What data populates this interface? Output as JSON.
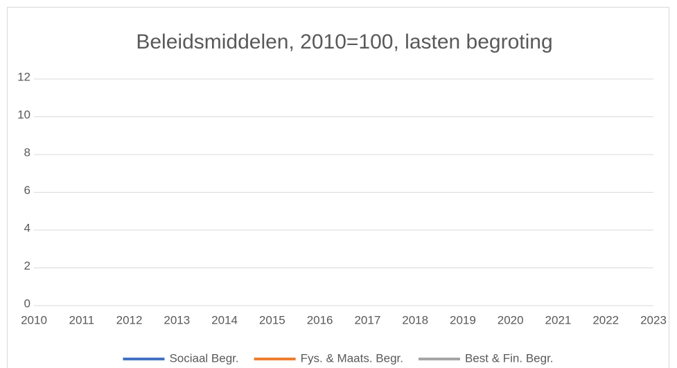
{
  "chart_data": {
    "type": "line",
    "title": "Beleidsmiddelen, 2010=100, lasten begroting",
    "x": [
      2010,
      2011,
      2012,
      2013,
      2014,
      2015,
      2016,
      2017,
      2018,
      2019,
      2020,
      2021,
      2022,
      2023
    ],
    "xlim": [
      2010,
      2023
    ],
    "xticks": [
      2010,
      2011,
      2012,
      2013,
      2014,
      2015,
      2016,
      2017,
      2018,
      2019,
      2020,
      2021,
      2022,
      2023
    ],
    "ylim": [
      0,
      12
    ],
    "yticks": [
      0,
      2,
      4,
      6,
      8,
      10,
      12
    ],
    "grid": true,
    "legend": "bottom",
    "series": [
      {
        "name": "Sociaal Begr.",
        "color": "#4472c4",
        "values": [
          null,
          null,
          null,
          null,
          null,
          null,
          null,
          null,
          null,
          null,
          null,
          null,
          null,
          null
        ]
      },
      {
        "name": "Fys. & Maats. Begr.",
        "color": "#ed7d31",
        "values": [
          null,
          null,
          null,
          null,
          null,
          null,
          null,
          null,
          null,
          null,
          null,
          null,
          null,
          null
        ]
      },
      {
        "name": "Best & Fin. Begr.",
        "color": "#a5a5a5",
        "values": [
          null,
          null,
          null,
          null,
          null,
          null,
          null,
          null,
          null,
          null,
          null,
          null,
          null,
          null
        ]
      }
    ]
  }
}
